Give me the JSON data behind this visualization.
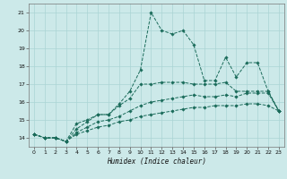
{
  "xlabel": "Humidex (Indice chaleur)",
  "xlim": [
    -0.5,
    23.5
  ],
  "ylim": [
    13.5,
    21.5
  ],
  "yticks": [
    14,
    15,
    16,
    17,
    18,
    19,
    20,
    21
  ],
  "xticks": [
    0,
    1,
    2,
    3,
    4,
    5,
    6,
    7,
    8,
    9,
    10,
    11,
    12,
    13,
    14,
    15,
    16,
    17,
    18,
    19,
    20,
    21,
    22,
    23
  ],
  "bg_color": "#cce9e9",
  "grid_color": "#aad4d4",
  "line_color": "#1a6b5a",
  "line1_y": [
    14.2,
    14.0,
    14.0,
    13.8,
    14.8,
    15.0,
    15.3,
    15.3,
    15.9,
    16.6,
    17.8,
    21.0,
    20.0,
    19.8,
    20.0,
    19.2,
    17.2,
    17.2,
    18.5,
    17.4,
    18.2,
    18.2,
    16.6,
    15.5
  ],
  "line2_y": [
    14.2,
    14.0,
    14.0,
    13.8,
    14.5,
    14.9,
    15.3,
    15.3,
    15.8,
    16.2,
    17.0,
    17.0,
    17.1,
    17.1,
    17.1,
    17.0,
    17.0,
    17.0,
    17.1,
    16.6,
    16.6,
    16.6,
    16.6,
    15.5
  ],
  "line3_y": [
    14.2,
    14.0,
    14.0,
    13.8,
    14.3,
    14.6,
    14.9,
    15.0,
    15.2,
    15.5,
    15.8,
    16.0,
    16.1,
    16.2,
    16.3,
    16.4,
    16.3,
    16.3,
    16.4,
    16.3,
    16.5,
    16.5,
    16.5,
    15.5
  ],
  "line4_y": [
    14.2,
    14.0,
    14.0,
    13.8,
    14.2,
    14.4,
    14.6,
    14.7,
    14.9,
    15.0,
    15.2,
    15.3,
    15.4,
    15.5,
    15.6,
    15.7,
    15.7,
    15.8,
    15.8,
    15.8,
    15.9,
    15.9,
    15.8,
    15.5
  ]
}
